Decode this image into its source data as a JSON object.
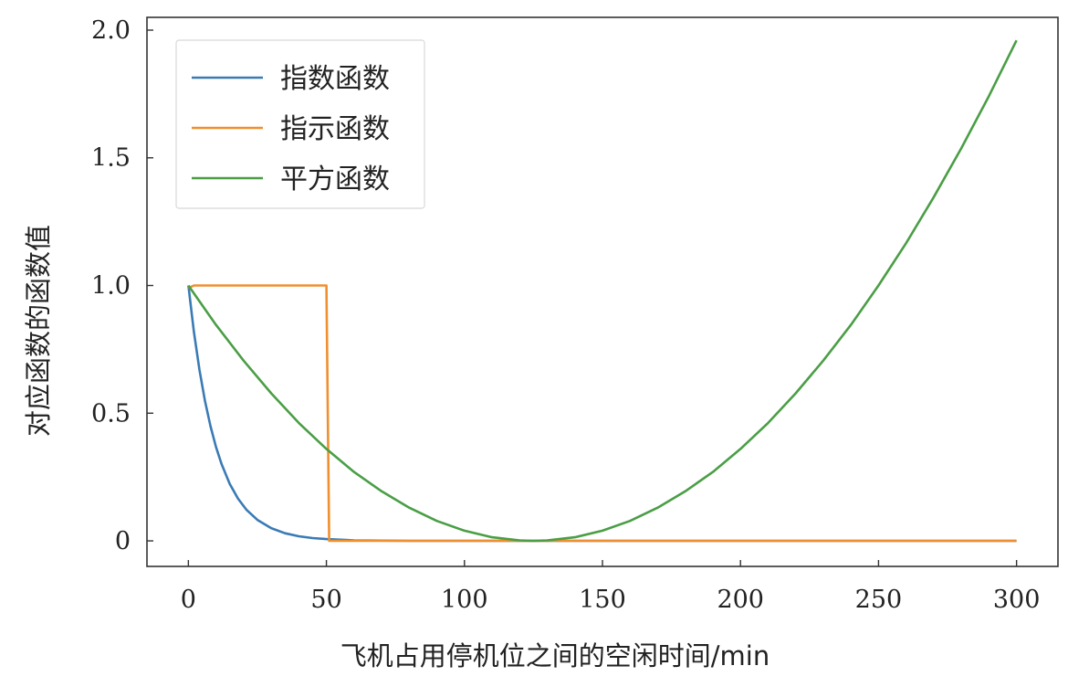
{
  "chart_data": {
    "type": "line",
    "title": "",
    "xlabel": "飞机占用停机位之间的空闲时间/min",
    "ylabel": "对应函数的函数值",
    "xlim": [
      -15,
      315
    ],
    "ylim": [
      -0.1,
      2.05
    ],
    "xticks": [
      0,
      50,
      100,
      150,
      200,
      250,
      300
    ],
    "yticks": [
      0,
      0.5,
      1.0,
      1.5,
      2.0
    ],
    "xtick_labels": [
      "0",
      "50",
      "100",
      "150",
      "200",
      "250",
      "300"
    ],
    "ytick_labels": [
      "0",
      "0.5",
      "1.0",
      "1.5",
      "2.0"
    ],
    "grid": false,
    "legend_position": "top-left",
    "series": [
      {
        "name": "指数函数",
        "color": "#3a7bb5",
        "x": [
          0,
          2,
          4,
          6,
          8,
          10,
          12,
          15,
          18,
          21,
          25,
          30,
          35,
          40,
          45,
          50,
          60,
          80,
          100,
          150,
          200,
          250,
          300
        ],
        "y": [
          1.0,
          0.819,
          0.67,
          0.549,
          0.449,
          0.368,
          0.301,
          0.223,
          0.165,
          0.122,
          0.082,
          0.05,
          0.03,
          0.018,
          0.011,
          0.007,
          0.002,
          0.0,
          0.0,
          0.0,
          0.0,
          0.0,
          0.0
        ]
      },
      {
        "name": "指示函数",
        "color": "#ef8f2f",
        "x": [
          0,
          2,
          50,
          51,
          60,
          100,
          150,
          200,
          250,
          300
        ],
        "y": [
          0.99,
          1.0,
          1.0,
          0.0,
          0.0,
          0.0,
          0.0,
          0.0,
          0.0,
          0.0
        ]
      },
      {
        "name": "平方函数",
        "color": "#4a9e45",
        "x": [
          0,
          10,
          20,
          30,
          40,
          50,
          60,
          70,
          80,
          90,
          100,
          110,
          120,
          125,
          130,
          140,
          150,
          160,
          170,
          180,
          190,
          200,
          210,
          220,
          230,
          240,
          250,
          260,
          270,
          280,
          290,
          300
        ],
        "y": [
          1.0,
          0.846,
          0.706,
          0.578,
          0.462,
          0.36,
          0.27,
          0.194,
          0.13,
          0.078,
          0.04,
          0.014,
          0.002,
          0.0,
          0.002,
          0.014,
          0.04,
          0.078,
          0.13,
          0.194,
          0.27,
          0.36,
          0.462,
          0.578,
          0.706,
          0.846,
          1.0,
          1.166,
          1.346,
          1.538,
          1.742,
          1.96
        ]
      }
    ]
  }
}
